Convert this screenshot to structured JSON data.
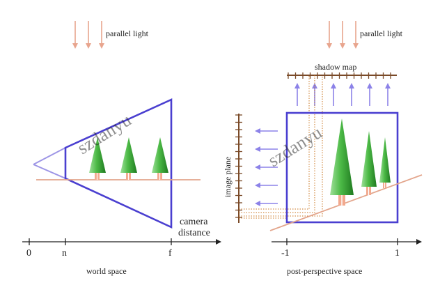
{
  "left_panel": {
    "light_label": "parallel light",
    "camera_label_line1": "camera",
    "camera_label_line2": "distance",
    "axis_ticks": [
      "0",
      "n",
      "f"
    ],
    "caption": "world space"
  },
  "right_panel": {
    "light_label": "parallel light",
    "shadow_map_label": "shadow map",
    "image_plane_label": "image plane",
    "axis_ticks": [
      "-1",
      "1"
    ],
    "caption": "post-perspective space"
  },
  "watermark": "szdanyu",
  "colors": {
    "frustum": "#4a3fd0",
    "frustum_light": "#9d95e6",
    "ground": "#e3a58c",
    "light_arrow": "#e8a58e",
    "blue_arrow": "#8c82e8",
    "ruler": "#7a4a28",
    "tree_green": "#3aa23a",
    "tree_trunk": "#f2a98e",
    "axis": "#222222",
    "projection_line": "#c9741f"
  }
}
